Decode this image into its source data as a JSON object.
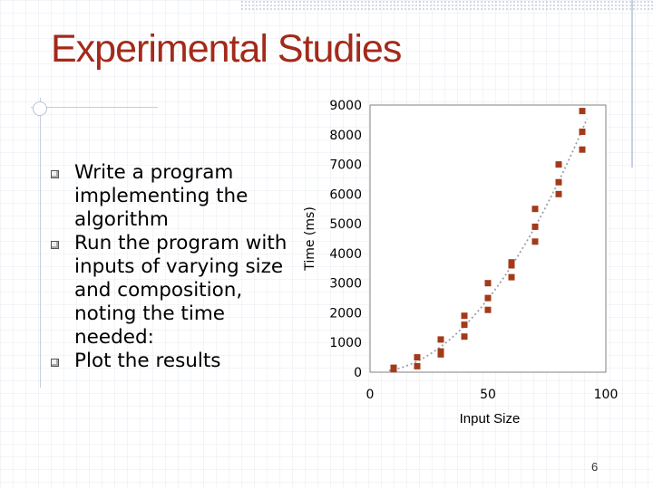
{
  "slide": {
    "title": "Experimental Studies",
    "bullets": [
      "Write a program implementing the algorithm",
      "Run the program with inputs of varying size and composition, noting the time needed:",
      "Plot the results"
    ],
    "page_number": "6"
  },
  "chart_data": {
    "type": "scatter",
    "title": "",
    "xlabel": "Input Size",
    "ylabel": "Time (ms)",
    "xlim": [
      0,
      100
    ],
    "ylim": [
      0,
      9000
    ],
    "x_ticks": [
      "0",
      "50",
      "100"
    ],
    "y_ticks": [
      "0",
      "1000",
      "2000",
      "3000",
      "4000",
      "5000",
      "6000",
      "7000",
      "8000",
      "9000"
    ],
    "marker_color": "#a33a1a",
    "trend_color": "#9aa0a6",
    "trendline": "quadratic, dotted",
    "points": [
      [
        10,
        150
      ],
      [
        10,
        100
      ],
      [
        20,
        500
      ],
      [
        20,
        200
      ],
      [
        30,
        1100
      ],
      [
        30,
        700
      ],
      [
        30,
        600
      ],
      [
        40,
        1900
      ],
      [
        40,
        1600
      ],
      [
        40,
        1200
      ],
      [
        50,
        3000
      ],
      [
        50,
        2500
      ],
      [
        50,
        2100
      ],
      [
        60,
        3700
      ],
      [
        60,
        3600
      ],
      [
        60,
        3200
      ],
      [
        70,
        5500
      ],
      [
        70,
        4900
      ],
      [
        70,
        4400
      ],
      [
        80,
        7000
      ],
      [
        80,
        6400
      ],
      [
        80,
        6000
      ],
      [
        90,
        8800
      ],
      [
        90,
        8100
      ],
      [
        90,
        7500
      ]
    ]
  }
}
